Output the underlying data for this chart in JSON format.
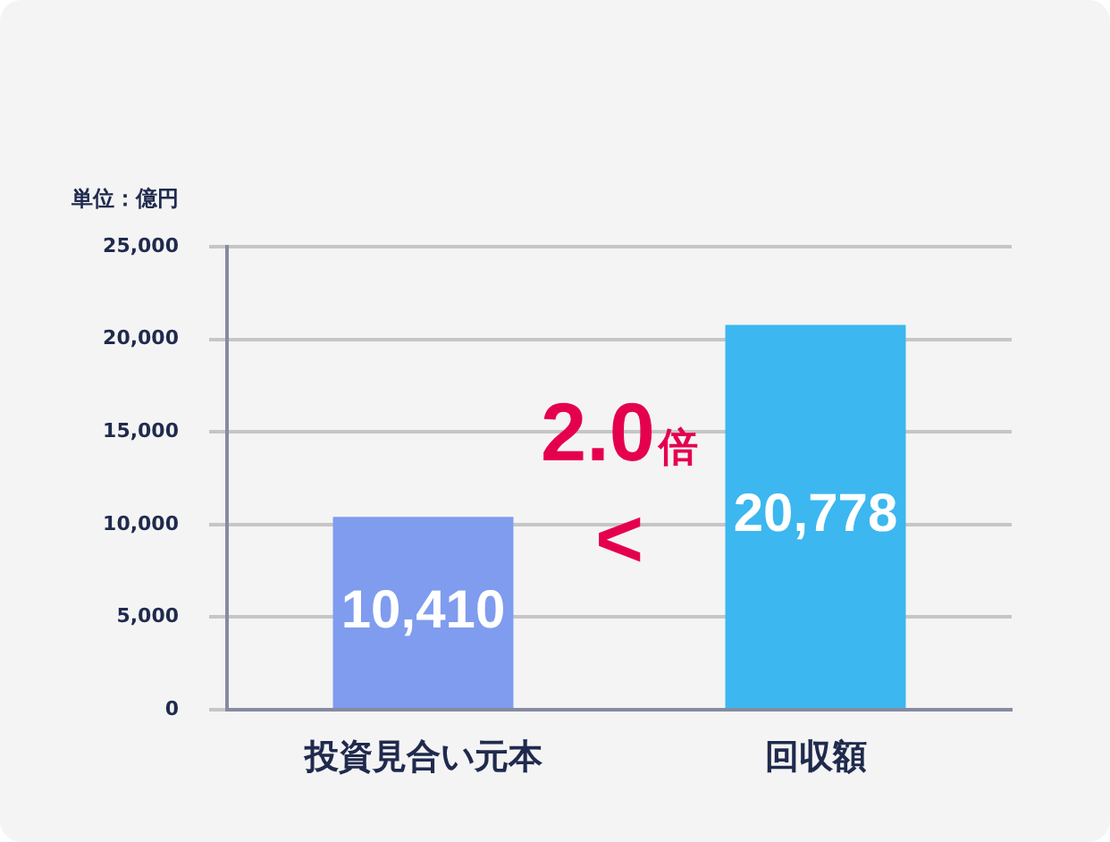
{
  "chart_data": {
    "type": "bar",
    "ylabel": "単位：億円",
    "categories": [
      "投資見合い元本",
      "回収額"
    ],
    "values": [
      10410,
      20778
    ],
    "colors": [
      "#7f9cee",
      "#3cb7ef"
    ],
    "value_labels": [
      "10,410",
      "20,778"
    ],
    "ylim": [
      0,
      25000
    ],
    "yticks": [
      0,
      {
        "value": 5000,
        "label": "5,000"
      },
      {
        "value": 10000,
        "label": "10,000"
      },
      {
        "value": 15000,
        "label": "15,000"
      },
      {
        "value": 20000,
        "label": "20,000"
      },
      {
        "value": 25000,
        "label": "25,000"
      }
    ],
    "grid": "y",
    "annotations": [
      "2.0倍",
      "<"
    ]
  }
}
